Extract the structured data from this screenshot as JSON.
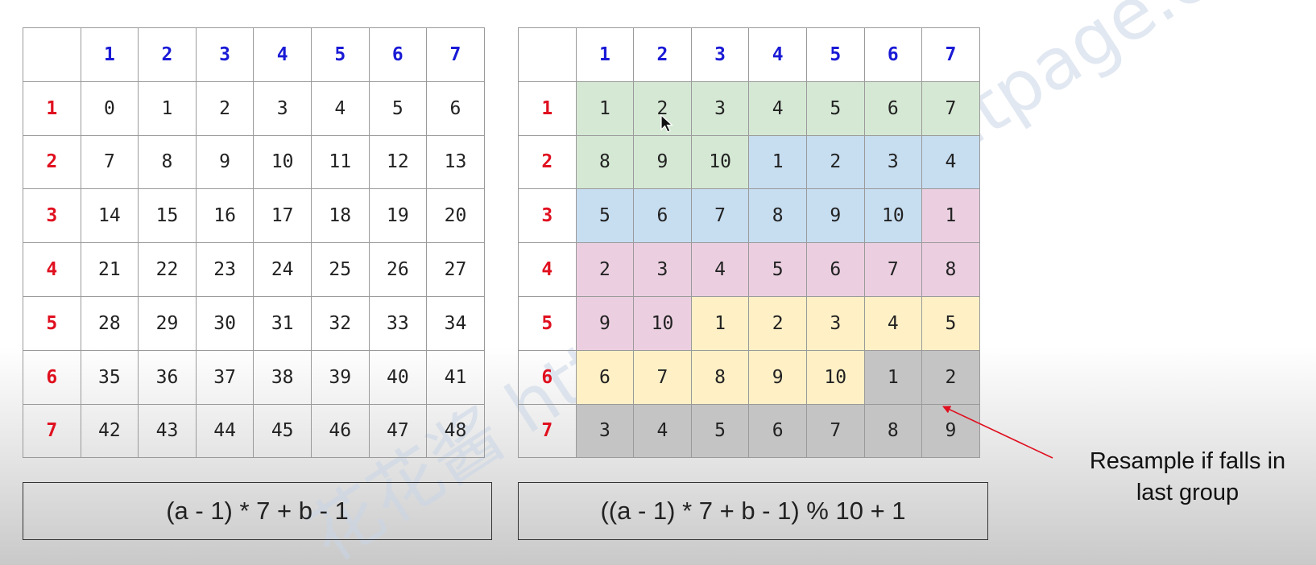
{
  "left_table": {
    "col_headers": [
      "1",
      "2",
      "3",
      "4",
      "5",
      "6",
      "7"
    ],
    "row_headers": [
      "1",
      "2",
      "3",
      "4",
      "5",
      "6",
      "7"
    ],
    "rows": [
      [
        "0",
        "1",
        "2",
        "3",
        "4",
        "5",
        "6"
      ],
      [
        "7",
        "8",
        "9",
        "10",
        "11",
        "12",
        "13"
      ],
      [
        "14",
        "15",
        "16",
        "17",
        "18",
        "19",
        "20"
      ],
      [
        "21",
        "22",
        "23",
        "24",
        "25",
        "26",
        "27"
      ],
      [
        "28",
        "29",
        "30",
        "31",
        "32",
        "33",
        "34"
      ],
      [
        "35",
        "36",
        "37",
        "38",
        "39",
        "40",
        "41"
      ],
      [
        "42",
        "43",
        "44",
        "45",
        "46",
        "47",
        "48"
      ]
    ]
  },
  "right_table": {
    "col_headers": [
      "1",
      "2",
      "3",
      "4",
      "5",
      "6",
      "7"
    ],
    "row_headers": [
      "1",
      "2",
      "3",
      "4",
      "5",
      "6",
      "7"
    ],
    "rows": [
      [
        "1",
        "2",
        "3",
        "4",
        "5",
        "6",
        "7"
      ],
      [
        "8",
        "9",
        "10",
        "1",
        "2",
        "3",
        "4"
      ],
      [
        "5",
        "6",
        "7",
        "8",
        "9",
        "10",
        "1"
      ],
      [
        "2",
        "3",
        "4",
        "5",
        "6",
        "7",
        "8"
      ],
      [
        "9",
        "10",
        "1",
        "2",
        "3",
        "4",
        "5"
      ],
      [
        "6",
        "7",
        "8",
        "9",
        "10",
        "1",
        "2"
      ],
      [
        "3",
        "4",
        "5",
        "6",
        "7",
        "8",
        "9"
      ]
    ],
    "group_colors": [
      "#d5e8d4",
      "#c7ddf0",
      "#ebcfe0",
      "#fff0c6",
      "#c4c4c4"
    ]
  },
  "formulas": {
    "left": "(a - 1) * 7 + b - 1",
    "right": "((a - 1) * 7 + b - 1) % 10 + 1"
  },
  "annotation": {
    "line1": "Resample if falls in",
    "line2": "last group",
    "arrow_color": "#e0101f"
  },
  "colors": {
    "col_header": "#1a1ad6",
    "row_header": "#e0101f"
  },
  "watermark": {
    "text": "花花酱 https://zxi.mygitpage.com/blog/"
  },
  "cursor_icon": "mouse-pointer-icon"
}
